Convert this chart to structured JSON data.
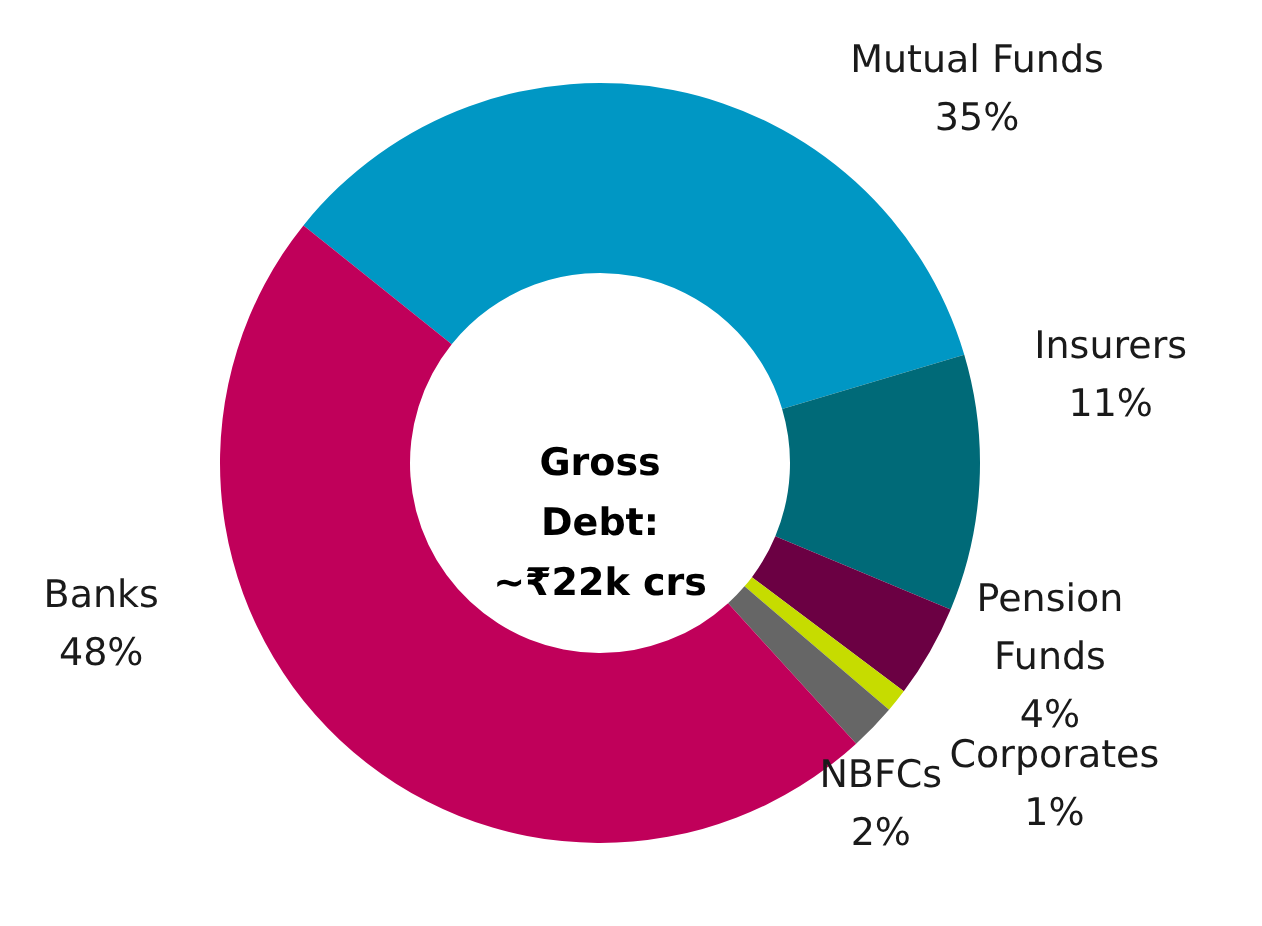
{
  "chart_data": {
    "type": "donut",
    "categories": [
      "Mutual Funds",
      "Insurers",
      "Pension Funds",
      "Corporates",
      "NBFCs",
      "Banks"
    ],
    "values": [
      35,
      11,
      4,
      1,
      2,
      48
    ],
    "value_labels": [
      "35%",
      "11%",
      "4%",
      "1%",
      "2%",
      "48%"
    ],
    "colors": [
      "#0097c4",
      "#006a78",
      "#6b0043",
      "#c6dc00",
      "#666666",
      "#c0005a"
    ],
    "annotations": [
      "Gross\nDebt:\n~₹22k crs"
    ]
  }
}
